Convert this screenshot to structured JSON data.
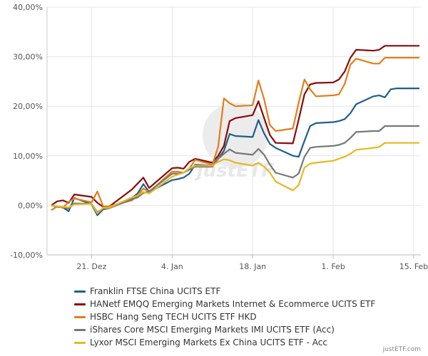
{
  "chart_data": {
    "type": "line",
    "x": [
      "2020-12-14",
      "2020-12-15",
      "2020-12-16",
      "2020-12-17",
      "2020-12-18",
      "2020-12-21",
      "2020-12-22",
      "2020-12-23",
      "2020-12-24",
      "2020-12-28",
      "2020-12-29",
      "2020-12-30",
      "2020-12-31",
      "2021-01-04",
      "2021-01-05",
      "2021-01-06",
      "2021-01-07",
      "2021-01-08",
      "2021-01-11",
      "2021-01-12",
      "2021-01-13",
      "2021-01-14",
      "2021-01-15",
      "2021-01-18",
      "2021-01-19",
      "2021-01-20",
      "2021-01-21",
      "2021-01-22",
      "2021-01-25",
      "2021-01-26",
      "2021-01-27",
      "2021-01-28",
      "2021-01-29",
      "2021-02-01",
      "2021-02-02",
      "2021-02-03",
      "2021-02-04",
      "2021-02-05",
      "2021-02-08",
      "2021-02-09",
      "2021-02-10",
      "2021-02-11",
      "2021-02-12",
      "2021-02-15",
      "2021-02-16"
    ],
    "x_ticks": [
      {
        "date": "2020-12-21",
        "label": "21. Dez"
      },
      {
        "date": "2021-01-04",
        "label": "4. Jan"
      },
      {
        "date": "2021-01-18",
        "label": "18. Jan"
      },
      {
        "date": "2021-02-01",
        "label": "1. Feb"
      },
      {
        "date": "2021-02-15",
        "label": "15. Feb"
      }
    ],
    "y_ticks": [
      {
        "value": 40,
        "label": "40,00%"
      },
      {
        "value": 30,
        "label": "30,00%"
      },
      {
        "value": 20,
        "label": "20,00%"
      },
      {
        "value": 10,
        "label": "10,00%"
      },
      {
        "value": 0,
        "label": "0,00%"
      },
      {
        "value": -10,
        "label": "-10,00%"
      }
    ],
    "ylim": [
      -10,
      40
    ],
    "grid": true,
    "legend_position": "bottom",
    "series": [
      {
        "name": "Franklin FTSE China UCITS ETF",
        "color": "#1f5f8b",
        "values": [
          0,
          -0.3,
          -0.4,
          -1.2,
          1.5,
          0.2,
          -2.0,
          -0.8,
          -0.6,
          1.5,
          2.4,
          4.3,
          2.7,
          5.1,
          5.3,
          5.6,
          6.4,
          8.2,
          8.0,
          9.4,
          11.0,
          14.4,
          14.0,
          13.8,
          17.2,
          14.5,
          12.4,
          11.6,
          10.0,
          9.8,
          13.0,
          16.0,
          16.6,
          16.8,
          17.0,
          17.4,
          18.6,
          20.4,
          22.0,
          22.2,
          21.8,
          23.4,
          23.6,
          23.6,
          23.6
        ]
      },
      {
        "name": "HANetf EMQQ Emerging Markets Internet & Ecommerce UCITS ETF",
        "color": "#8b0a0a",
        "values": [
          0,
          0.8,
          1.0,
          0.5,
          2.2,
          1.7,
          0.5,
          -0.3,
          -0.3,
          3.2,
          4.4,
          5.6,
          3.5,
          7.5,
          7.6,
          7.4,
          8.8,
          9.4,
          8.6,
          10.0,
          12.0,
          17.0,
          17.6,
          18.2,
          21.0,
          17.6,
          14.2,
          12.6,
          12.5,
          17.3,
          22.4,
          24.4,
          24.7,
          24.8,
          25.4,
          27.0,
          29.8,
          31.4,
          31.2,
          31.4,
          32.2,
          32.2,
          32.2,
          32.2,
          32.2
        ]
      },
      {
        "name": "HSBC Hang Seng TECH UCITS ETF HKD",
        "color": "#e07e1b",
        "values": [
          -1.0,
          -0.2,
          -0.5,
          0.7,
          1.4,
          0.6,
          2.8,
          -0.2,
          -0.2,
          1.0,
          2.0,
          3.4,
          2.7,
          6.8,
          6.8,
          6.6,
          7.4,
          9.2,
          8.2,
          11.8,
          21.6,
          20.6,
          20.0,
          20.2,
          25.2,
          21.4,
          16.2,
          15.0,
          15.5,
          20.7,
          25.4,
          23.4,
          22.0,
          22.2,
          22.4,
          24.5,
          28.4,
          29.6,
          28.6,
          28.6,
          29.8,
          29.8,
          29.8,
          29.8,
          29.8
        ]
      },
      {
        "name": "iShares Core MSCI Emerging Markets IMI UCITS ETF (Acc)",
        "color": "#777777",
        "values": [
          0,
          -0.3,
          -0.3,
          -0.7,
          0.4,
          0.3,
          -1.4,
          -0.6,
          -0.6,
          1.2,
          1.6,
          2.5,
          2.8,
          6.4,
          6.4,
          6.6,
          7.2,
          7.8,
          7.8,
          9.4,
          10.4,
          11.3,
          10.6,
          10.2,
          11.4,
          10.2,
          8.2,
          6.6,
          5.6,
          6.4,
          9.8,
          11.6,
          11.8,
          12.0,
          12.2,
          12.6,
          13.6,
          14.8,
          15.0,
          15.0,
          16.0,
          16.0,
          16.0,
          16.0,
          16.0
        ]
      },
      {
        "name": "Lyxor MSCI Emerging Markets Ex China UCITS ETF - Acc",
        "color": "#e6b820",
        "values": [
          0,
          -0.2,
          -0.3,
          -0.4,
          0.2,
          0.3,
          -1.6,
          -0.5,
          -0.5,
          1.6,
          2.0,
          2.7,
          2.4,
          5.8,
          6.2,
          6.6,
          7.5,
          8.0,
          8.0,
          8.8,
          9.3,
          9.1,
          8.6,
          8.0,
          8.6,
          7.8,
          6.6,
          4.8,
          3.0,
          4.1,
          7.6,
          8.4,
          8.6,
          9.0,
          9.4,
          9.8,
          10.4,
          11.2,
          11.6,
          11.8,
          12.6,
          12.6,
          12.6,
          12.6,
          12.6
        ]
      }
    ]
  },
  "watermark": "justETF",
  "credit": "justETF.com"
}
